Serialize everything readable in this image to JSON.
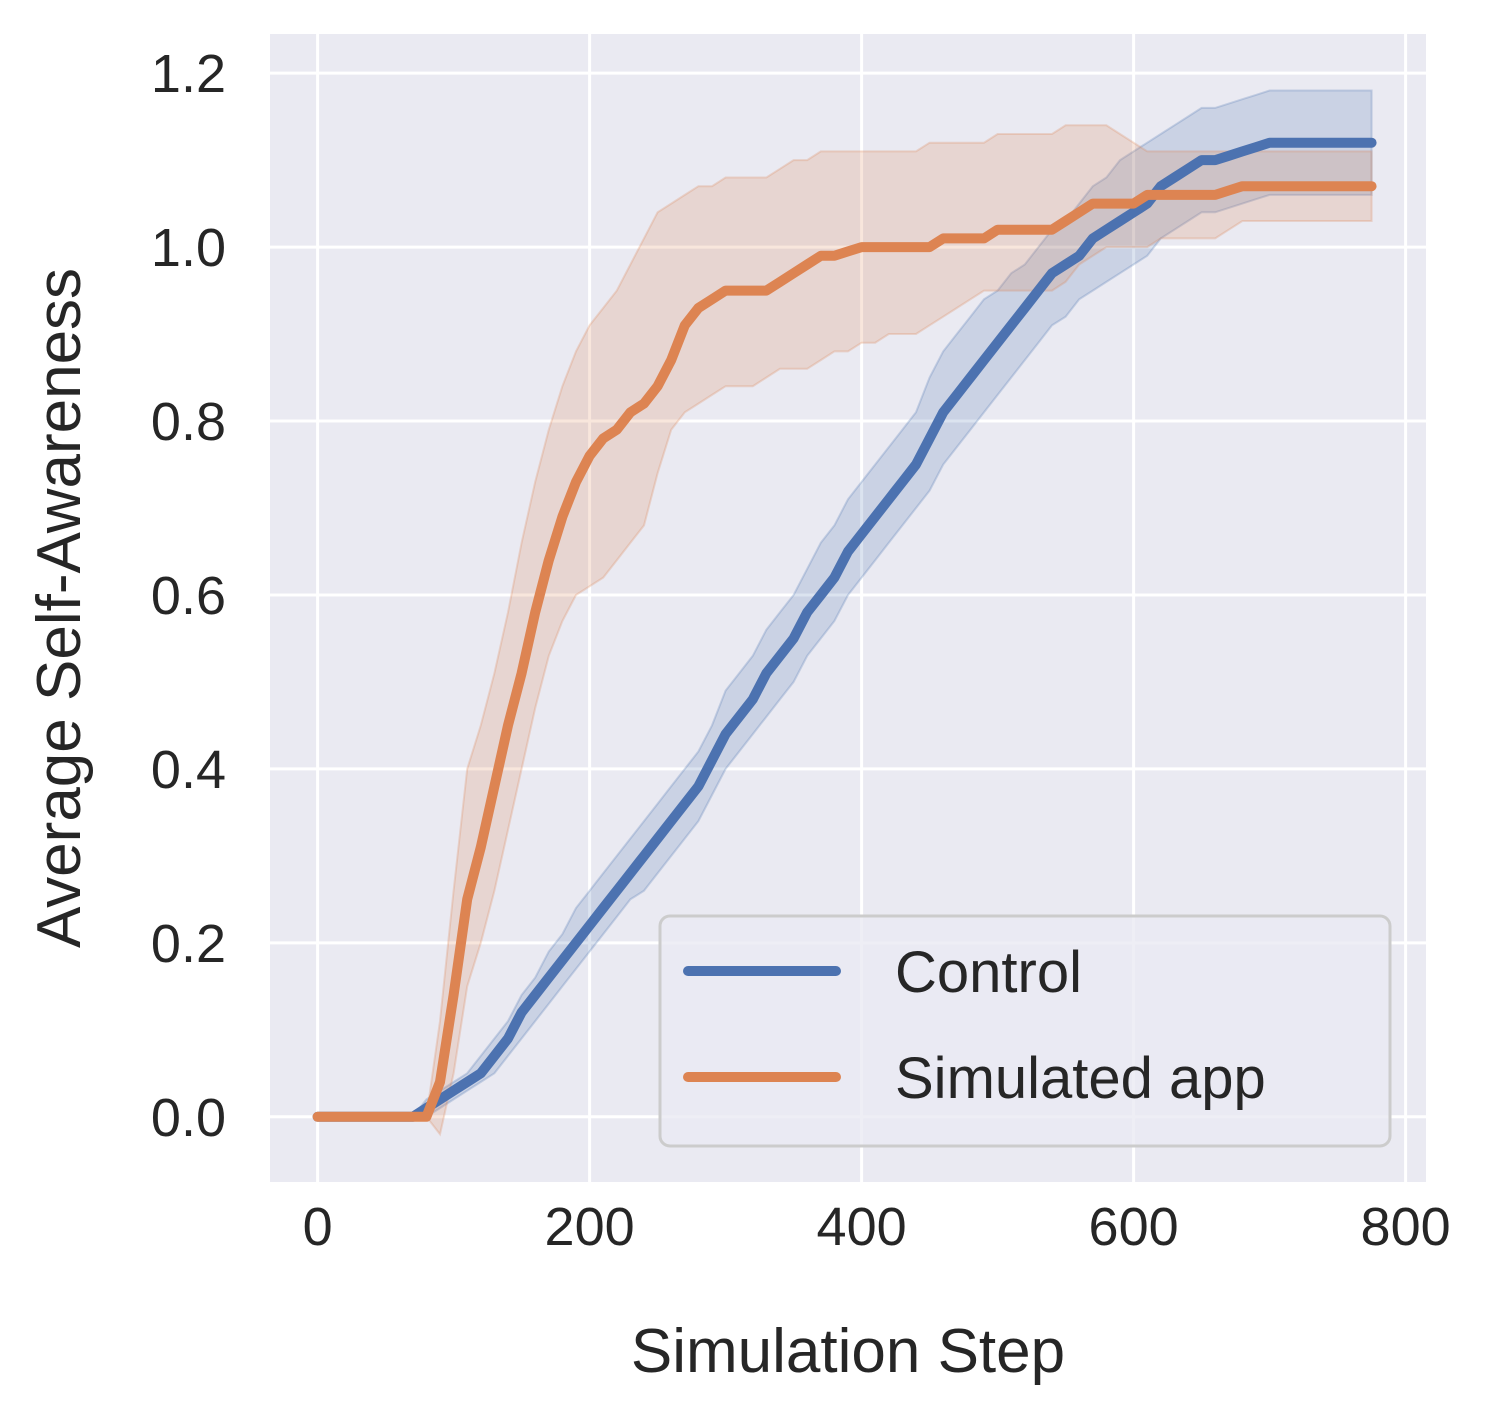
{
  "chart_data": {
    "type": "line",
    "xlabel": "Simulation Step",
    "ylabel": "Average Self-Awareness",
    "xlim": [
      -35,
      815
    ],
    "ylim": [
      -0.075,
      1.245
    ],
    "xticks": [
      0,
      200,
      400,
      600,
      800
    ],
    "xtick_labels": [
      "0",
      "200",
      "400",
      "600",
      "800"
    ],
    "yticks": [
      0.0,
      0.2,
      0.4,
      0.6,
      0.8,
      1.0,
      1.2
    ],
    "ytick_labels": [
      "0.0",
      "0.2",
      "0.4",
      "0.6",
      "0.8",
      "1.0",
      "1.2"
    ],
    "grid": true,
    "legend_position": "lower-right",
    "series": [
      {
        "name": "Control",
        "color": "#4c72b0",
        "x": [
          0,
          40,
          70,
          80,
          90,
          100,
          110,
          120,
          130,
          140,
          150,
          160,
          170,
          180,
          190,
          200,
          210,
          220,
          230,
          240,
          250,
          260,
          270,
          280,
          290,
          300,
          310,
          320,
          330,
          340,
          350,
          360,
          370,
          380,
          390,
          400,
          410,
          420,
          430,
          440,
          450,
          460,
          470,
          480,
          490,
          500,
          510,
          520,
          530,
          540,
          550,
          560,
          570,
          580,
          590,
          600,
          610,
          620,
          630,
          640,
          650,
          660,
          670,
          680,
          690,
          700,
          710,
          720,
          730,
          740,
          750,
          760,
          775
        ],
        "y": [
          0.0,
          0.0,
          0.0,
          0.01,
          0.02,
          0.03,
          0.04,
          0.05,
          0.07,
          0.09,
          0.12,
          0.14,
          0.16,
          0.18,
          0.2,
          0.22,
          0.24,
          0.26,
          0.28,
          0.3,
          0.32,
          0.34,
          0.36,
          0.38,
          0.41,
          0.44,
          0.46,
          0.48,
          0.51,
          0.53,
          0.55,
          0.58,
          0.6,
          0.62,
          0.65,
          0.67,
          0.69,
          0.71,
          0.73,
          0.75,
          0.78,
          0.81,
          0.83,
          0.85,
          0.87,
          0.89,
          0.91,
          0.93,
          0.95,
          0.97,
          0.98,
          0.99,
          1.01,
          1.02,
          1.03,
          1.04,
          1.05,
          1.07,
          1.08,
          1.09,
          1.1,
          1.1,
          1.105,
          1.11,
          1.115,
          1.12,
          1.12,
          1.12,
          1.12,
          1.12,
          1.12,
          1.12,
          1.12
        ],
        "ci_lower": [
          0.0,
          0.0,
          0.0,
          0.0,
          0.01,
          0.02,
          0.03,
          0.04,
          0.05,
          0.07,
          0.09,
          0.11,
          0.13,
          0.15,
          0.17,
          0.19,
          0.21,
          0.23,
          0.25,
          0.26,
          0.28,
          0.3,
          0.32,
          0.34,
          0.37,
          0.4,
          0.42,
          0.44,
          0.46,
          0.48,
          0.5,
          0.53,
          0.55,
          0.57,
          0.6,
          0.62,
          0.64,
          0.66,
          0.68,
          0.7,
          0.72,
          0.75,
          0.77,
          0.79,
          0.81,
          0.83,
          0.85,
          0.87,
          0.89,
          0.91,
          0.92,
          0.94,
          0.95,
          0.96,
          0.97,
          0.98,
          0.99,
          1.01,
          1.02,
          1.03,
          1.04,
          1.04,
          1.045,
          1.05,
          1.055,
          1.06,
          1.06,
          1.06,
          1.06,
          1.06,
          1.06,
          1.06,
          1.06
        ],
        "ci_upper": [
          0.0,
          0.0,
          0.0,
          0.02,
          0.03,
          0.04,
          0.05,
          0.07,
          0.09,
          0.11,
          0.14,
          0.16,
          0.19,
          0.21,
          0.24,
          0.26,
          0.28,
          0.3,
          0.32,
          0.34,
          0.36,
          0.38,
          0.4,
          0.42,
          0.45,
          0.49,
          0.51,
          0.53,
          0.56,
          0.58,
          0.6,
          0.63,
          0.66,
          0.68,
          0.71,
          0.73,
          0.75,
          0.77,
          0.79,
          0.81,
          0.85,
          0.88,
          0.9,
          0.92,
          0.94,
          0.95,
          0.97,
          0.98,
          1.0,
          1.02,
          1.03,
          1.05,
          1.07,
          1.08,
          1.1,
          1.11,
          1.12,
          1.13,
          1.14,
          1.15,
          1.16,
          1.16,
          1.165,
          1.17,
          1.175,
          1.18,
          1.18,
          1.18,
          1.18,
          1.18,
          1.18,
          1.18,
          1.18
        ]
      },
      {
        "name": "Simulated app",
        "color": "#dd8452",
        "x": [
          0,
          40,
          80,
          90,
          100,
          110,
          120,
          130,
          140,
          150,
          160,
          170,
          180,
          190,
          200,
          210,
          220,
          230,
          240,
          250,
          260,
          270,
          280,
          290,
          300,
          310,
          320,
          330,
          340,
          350,
          360,
          370,
          380,
          390,
          400,
          410,
          420,
          430,
          440,
          450,
          460,
          470,
          480,
          490,
          500,
          510,
          520,
          530,
          540,
          550,
          560,
          570,
          580,
          590,
          600,
          610,
          620,
          630,
          640,
          650,
          660,
          670,
          680,
          690,
          700,
          710,
          720,
          730,
          740,
          750,
          760,
          775
        ],
        "y": [
          0.0,
          0.0,
          0.0,
          0.04,
          0.14,
          0.25,
          0.31,
          0.38,
          0.45,
          0.51,
          0.58,
          0.64,
          0.69,
          0.73,
          0.76,
          0.78,
          0.79,
          0.81,
          0.82,
          0.84,
          0.87,
          0.91,
          0.93,
          0.94,
          0.95,
          0.95,
          0.95,
          0.95,
          0.96,
          0.97,
          0.98,
          0.99,
          0.99,
          0.995,
          1.0,
          1.0,
          1.0,
          1.0,
          1.0,
          1.0,
          1.01,
          1.01,
          1.01,
          1.01,
          1.02,
          1.02,
          1.02,
          1.02,
          1.02,
          1.03,
          1.04,
          1.05,
          1.05,
          1.05,
          1.05,
          1.06,
          1.06,
          1.06,
          1.06,
          1.06,
          1.06,
          1.065,
          1.07,
          1.07,
          1.07,
          1.07,
          1.07,
          1.07,
          1.07,
          1.07,
          1.07,
          1.07
        ],
        "ci_lower": [
          0.0,
          0.0,
          0.0,
          -0.02,
          0.05,
          0.15,
          0.2,
          0.26,
          0.33,
          0.4,
          0.47,
          0.53,
          0.57,
          0.6,
          0.61,
          0.62,
          0.64,
          0.66,
          0.68,
          0.74,
          0.79,
          0.81,
          0.82,
          0.83,
          0.84,
          0.84,
          0.84,
          0.85,
          0.86,
          0.86,
          0.86,
          0.87,
          0.88,
          0.88,
          0.89,
          0.89,
          0.9,
          0.9,
          0.9,
          0.91,
          0.92,
          0.93,
          0.94,
          0.95,
          0.95,
          0.95,
          0.95,
          0.95,
          0.95,
          0.96,
          0.98,
          0.99,
          1.0,
          1.0,
          1.0,
          1.0,
          1.01,
          1.01,
          1.01,
          1.01,
          1.01,
          1.02,
          1.03,
          1.03,
          1.03,
          1.03,
          1.03,
          1.03,
          1.03,
          1.03,
          1.03,
          1.03
        ],
        "ci_upper": [
          0.0,
          0.0,
          0.0,
          0.11,
          0.26,
          0.4,
          0.45,
          0.51,
          0.58,
          0.66,
          0.73,
          0.79,
          0.84,
          0.88,
          0.91,
          0.93,
          0.95,
          0.98,
          1.01,
          1.04,
          1.05,
          1.06,
          1.07,
          1.07,
          1.08,
          1.08,
          1.08,
          1.08,
          1.09,
          1.1,
          1.1,
          1.11,
          1.11,
          1.11,
          1.11,
          1.11,
          1.11,
          1.11,
          1.11,
          1.12,
          1.12,
          1.12,
          1.12,
          1.12,
          1.13,
          1.13,
          1.13,
          1.13,
          1.13,
          1.14,
          1.14,
          1.14,
          1.14,
          1.13,
          1.12,
          1.11,
          1.11,
          1.11,
          1.11,
          1.11,
          1.11,
          1.11,
          1.11,
          1.11,
          1.11,
          1.11,
          1.11,
          1.11,
          1.11,
          1.11,
          1.11,
          1.11
        ]
      }
    ]
  }
}
